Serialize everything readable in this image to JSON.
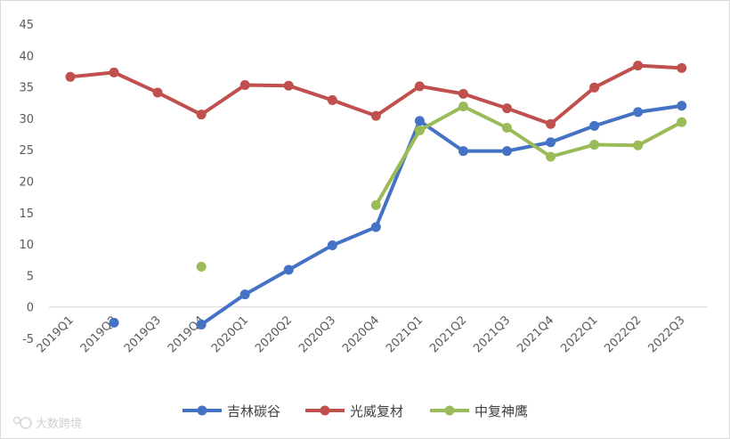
{
  "chart_data": {
    "type": "line",
    "categories": [
      "2019Q1",
      "2019Q2",
      "2019Q3",
      "2019Q4",
      "2020Q1",
      "2020Q2",
      "2020Q3",
      "2020Q4",
      "2021Q1",
      "2021Q2",
      "2021Q3",
      "2021Q4",
      "2022Q1",
      "2022Q2",
      "2022Q3"
    ],
    "ylim": [
      -5,
      45
    ],
    "yticks": [
      -5,
      0,
      5,
      10,
      15,
      20,
      25,
      30,
      35,
      40,
      45
    ],
    "grid": false,
    "legend_position": "bottom",
    "series": [
      {
        "name": "吉林碳谷",
        "color": "#4472C4",
        "values": [
          null,
          -2.5,
          null,
          -2.8,
          2.0,
          5.9,
          9.8,
          12.7,
          29.6,
          24.8,
          24.8,
          26.2,
          28.8,
          31.0,
          32.0
        ]
      },
      {
        "name": "光威复材",
        "color": "#C0504D",
        "values": [
          36.6,
          37.3,
          34.1,
          30.6,
          35.3,
          35.2,
          32.9,
          30.4,
          35.1,
          33.9,
          31.6,
          29.1,
          34.9,
          38.4,
          38.0
        ]
      },
      {
        "name": "中复神鹰",
        "color": "#9BBB59",
        "values": [
          null,
          null,
          null,
          6.4,
          null,
          null,
          null,
          16.2,
          28.1,
          31.9,
          28.5,
          23.9,
          25.8,
          25.7,
          29.4
        ]
      }
    ]
  },
  "watermark": {
    "text": "大数跨境",
    "logo_icon": "brand-logo-icon"
  }
}
